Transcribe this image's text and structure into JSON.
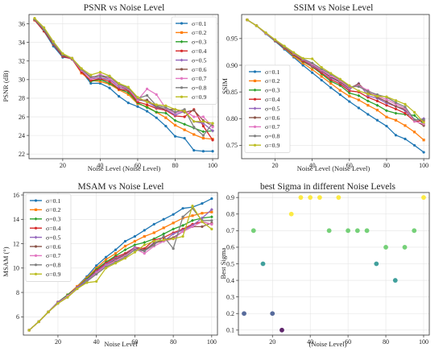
{
  "chart_data": [
    {
      "type": "line",
      "title": "PSNR vs Noise Level",
      "xlabel": "Noise Level (Noise Level)",
      "ylabel": "PSNR (dB)",
      "xlim": [
        2,
        103
      ],
      "ylim": [
        21.5,
        37
      ],
      "xticks": [
        20,
        40,
        60,
        80,
        100
      ],
      "yticks": [
        22,
        24,
        26,
        28,
        30,
        32,
        34,
        36
      ],
      "grid": true,
      "legend_position": "top-right",
      "x": [
        5,
        10,
        15,
        20,
        25,
        30,
        35,
        40,
        45,
        50,
        55,
        60,
        65,
        70,
        75,
        80,
        85,
        90,
        95,
        100
      ],
      "series": [
        {
          "name": "σ=0.1",
          "color": "#1f77b4",
          "values": [
            36.4,
            35.2,
            33.6,
            32.4,
            32.3,
            30.9,
            29.6,
            29.6,
            29.1,
            28.2,
            27.5,
            27.1,
            26.6,
            25.9,
            25.0,
            23.9,
            23.7,
            22.4,
            22.3,
            22.3
          ]
        },
        {
          "name": "σ=0.2",
          "color": "#ff7f0e",
          "values": [
            36.4,
            35.3,
            33.8,
            32.6,
            32.2,
            30.7,
            29.9,
            29.8,
            29.5,
            28.9,
            28.4,
            27.4,
            27.1,
            26.5,
            25.9,
            25.1,
            24.6,
            24.1,
            23.7,
            23.6
          ]
        },
        {
          "name": "σ=0.3",
          "color": "#2ca02c",
          "values": [
            36.4,
            35.3,
            33.8,
            32.6,
            32.2,
            30.9,
            29.8,
            30.0,
            29.6,
            29.0,
            28.6,
            27.5,
            27.0,
            26.5,
            26.4,
            25.6,
            25.2,
            24.8,
            24.4,
            24.5
          ]
        },
        {
          "name": "σ=0.4",
          "color": "#d62728",
          "values": [
            36.4,
            35.2,
            33.8,
            32.5,
            32.2,
            30.8,
            29.9,
            30.1,
            29.8,
            29.0,
            28.8,
            27.6,
            27.3,
            26.9,
            26.7,
            26.1,
            26.0,
            26.8,
            25.0,
            23.5
          ]
        },
        {
          "name": "σ=0.5",
          "color": "#9467bd",
          "values": [
            36.5,
            35.4,
            33.9,
            32.7,
            32.2,
            31.0,
            30.1,
            30.2,
            30.0,
            29.2,
            28.9,
            27.9,
            27.6,
            27.0,
            26.8,
            26.2,
            26.6,
            25.5,
            25.3,
            24.5
          ]
        },
        {
          "name": "σ=0.6",
          "color": "#8c564b",
          "values": [
            36.5,
            35.3,
            33.9,
            32.6,
            32.3,
            31.1,
            30.2,
            30.4,
            30.1,
            29.4,
            28.9,
            27.8,
            27.8,
            27.1,
            26.8,
            26.8,
            26.5,
            26.7,
            25.6,
            25.0
          ]
        },
        {
          "name": "σ=0.7",
          "color": "#e377c2",
          "values": [
            36.5,
            35.4,
            34.0,
            32.7,
            32.3,
            31.0,
            30.1,
            30.6,
            30.1,
            29.4,
            29.0,
            27.8,
            29.0,
            28.4,
            26.9,
            26.4,
            26.7,
            26.0,
            26.0,
            24.9
          ]
        },
        {
          "name": "σ=0.8",
          "color": "#7f7f7f",
          "values": [
            36.5,
            35.4,
            33.9,
            32.7,
            32.3,
            31.1,
            30.3,
            30.4,
            30.3,
            29.5,
            29.1,
            28.0,
            28.3,
            27.2,
            27.0,
            26.5,
            26.8,
            24.9,
            24.0,
            25.3
          ]
        },
        {
          "name": "σ=0.9",
          "color": "#bcbd22",
          "values": [
            36.6,
            35.6,
            34.1,
            32.8,
            32.3,
            31.2,
            30.5,
            30.8,
            30.4,
            29.6,
            29.2,
            28.1,
            27.6,
            27.3,
            27.2,
            26.8,
            26.6,
            25.5,
            25.5,
            25.3
          ]
        }
      ]
    },
    {
      "type": "line",
      "title": "SSIM vs Noise Level",
      "xlabel": "Noise Level (Noise Level)",
      "ylabel": "SSIM",
      "xlim": [
        2,
        103
      ],
      "ylim": [
        0.725,
        0.995
      ],
      "xticks": [
        20,
        40,
        60,
        80,
        100
      ],
      "yticks": [
        0.75,
        0.8,
        0.85,
        0.9,
        0.95
      ],
      "grid": true,
      "legend_position": "bottom-left",
      "x": [
        5,
        10,
        15,
        20,
        25,
        30,
        35,
        40,
        45,
        50,
        55,
        60,
        65,
        70,
        75,
        80,
        85,
        90,
        95,
        100
      ],
      "series": [
        {
          "name": "σ=0.1",
          "color": "#1f77b4",
          "values": [
            0.985,
            0.974,
            0.959,
            0.945,
            0.93,
            0.915,
            0.9,
            0.886,
            0.872,
            0.858,
            0.845,
            0.832,
            0.82,
            0.808,
            0.797,
            0.786,
            0.769,
            0.762,
            0.75,
            0.737
          ]
        },
        {
          "name": "σ=0.2",
          "color": "#ff7f0e",
          "values": [
            0.985,
            0.974,
            0.96,
            0.946,
            0.932,
            0.917,
            0.904,
            0.892,
            0.879,
            0.866,
            0.853,
            0.842,
            0.835,
            0.825,
            0.816,
            0.803,
            0.797,
            0.787,
            0.775,
            0.76
          ]
        },
        {
          "name": "σ=0.3",
          "color": "#2ca02c",
          "values": [
            0.985,
            0.974,
            0.96,
            0.946,
            0.933,
            0.919,
            0.907,
            0.897,
            0.884,
            0.87,
            0.862,
            0.848,
            0.843,
            0.833,
            0.825,
            0.815,
            0.81,
            0.808,
            0.806,
            0.79
          ]
        },
        {
          "name": "σ=0.4",
          "color": "#d62728",
          "values": [
            0.985,
            0.974,
            0.96,
            0.946,
            0.933,
            0.92,
            0.908,
            0.898,
            0.886,
            0.873,
            0.865,
            0.852,
            0.85,
            0.84,
            0.833,
            0.825,
            0.818,
            0.81,
            0.795,
            0.796
          ]
        },
        {
          "name": "σ=0.5",
          "color": "#9467bd",
          "values": [
            0.985,
            0.974,
            0.96,
            0.947,
            0.934,
            0.921,
            0.91,
            0.899,
            0.889,
            0.876,
            0.868,
            0.855,
            0.866,
            0.843,
            0.838,
            0.829,
            0.823,
            0.815,
            0.797,
            0.8
          ]
        },
        {
          "name": "σ=0.6",
          "color": "#8c564b",
          "values": [
            0.985,
            0.974,
            0.96,
            0.947,
            0.934,
            0.921,
            0.91,
            0.901,
            0.89,
            0.878,
            0.869,
            0.857,
            0.865,
            0.849,
            0.84,
            0.832,
            0.823,
            0.817,
            0.797,
            0.787
          ]
        },
        {
          "name": "σ=0.7",
          "color": "#e377c2",
          "values": [
            0.985,
            0.974,
            0.96,
            0.947,
            0.935,
            0.922,
            0.911,
            0.902,
            0.891,
            0.88,
            0.871,
            0.858,
            0.862,
            0.853,
            0.842,
            0.836,
            0.827,
            0.819,
            0.795,
            0.79
          ]
        },
        {
          "name": "σ=0.8",
          "color": "#7f7f7f",
          "values": [
            0.985,
            0.974,
            0.961,
            0.947,
            0.935,
            0.923,
            0.912,
            0.904,
            0.893,
            0.883,
            0.873,
            0.86,
            0.86,
            0.851,
            0.845,
            0.84,
            0.83,
            0.822,
            0.798,
            0.798
          ]
        },
        {
          "name": "σ=0.9",
          "color": "#bcbd22",
          "values": [
            0.985,
            0.974,
            0.961,
            0.948,
            0.936,
            0.924,
            0.913,
            0.912,
            0.896,
            0.885,
            0.874,
            0.862,
            0.852,
            0.846,
            0.842,
            0.841,
            0.834,
            0.827,
            0.812,
            0.793
          ]
        }
      ]
    },
    {
      "type": "line",
      "title": "MSAM vs Noise Level",
      "xlabel": "Noise Level",
      "ylabel": "MSAM (°)",
      "xlim": [
        2,
        103
      ],
      "ylim": [
        4.5,
        16.2
      ],
      "xticks": [
        20,
        40,
        60,
        80,
        100
      ],
      "yticks": [
        6,
        8,
        10,
        12,
        14,
        16
      ],
      "grid": true,
      "legend_position": "top-left",
      "x": [
        5,
        10,
        15,
        20,
        25,
        30,
        35,
        40,
        45,
        50,
        55,
        60,
        65,
        70,
        75,
        80,
        85,
        90,
        95,
        100
      ],
      "series": [
        {
          "name": "σ=0.1",
          "color": "#1f77b4",
          "values": [
            4.9,
            5.6,
            6.4,
            7.2,
            7.8,
            8.5,
            9.3,
            10.2,
            10.9,
            11.5,
            12.2,
            12.6,
            13.1,
            13.6,
            14.0,
            14.4,
            14.9,
            15.0,
            15.3,
            15.7
          ]
        },
        {
          "name": "σ=0.2",
          "color": "#ff7f0e",
          "values": [
            4.9,
            5.6,
            6.4,
            7.2,
            7.8,
            8.5,
            9.2,
            10.0,
            10.7,
            11.2,
            11.8,
            12.2,
            12.6,
            12.9,
            13.3,
            13.7,
            14.1,
            14.3,
            14.5,
            14.6
          ]
        },
        {
          "name": "σ=0.3",
          "color": "#2ca02c",
          "values": [
            4.9,
            5.6,
            6.4,
            7.2,
            7.8,
            8.4,
            9.1,
            9.9,
            10.5,
            11.0,
            11.5,
            11.9,
            12.1,
            12.4,
            12.8,
            13.2,
            13.5,
            13.9,
            14.1,
            14.2
          ]
        },
        {
          "name": "σ=0.4",
          "color": "#d62728",
          "values": [
            4.9,
            5.6,
            6.4,
            7.2,
            7.7,
            8.4,
            9.0,
            9.8,
            10.4,
            10.9,
            11.2,
            11.7,
            11.6,
            12.3,
            12.5,
            12.9,
            13.2,
            13.6,
            13.8,
            13.6
          ]
        },
        {
          "name": "σ=0.5",
          "color": "#9467bd",
          "values": [
            4.9,
            5.6,
            6.4,
            7.2,
            7.7,
            8.4,
            9.0,
            9.7,
            10.3,
            10.8,
            11.1,
            11.7,
            11.4,
            12.1,
            12.2,
            12.8,
            13.1,
            13.5,
            14.1,
            14.8
          ]
        },
        {
          "name": "σ=0.6",
          "color": "#8c564b",
          "values": [
            4.9,
            5.6,
            6.4,
            7.1,
            7.7,
            8.3,
            8.9,
            9.6,
            10.2,
            10.7,
            11.1,
            11.6,
            11.5,
            12.0,
            12.3,
            12.5,
            13.0,
            13.4,
            13.4,
            13.7
          ]
        },
        {
          "name": "σ=0.7",
          "color": "#e377c2",
          "values": [
            4.9,
            5.6,
            6.4,
            7.1,
            7.7,
            8.3,
            8.9,
            9.6,
            10.2,
            10.6,
            11.0,
            11.6,
            11.2,
            11.8,
            12.2,
            12.4,
            13.0,
            13.4,
            13.8,
            13.6
          ]
        },
        {
          "name": "σ=0.8",
          "color": "#7f7f7f",
          "values": [
            4.9,
            5.6,
            6.4,
            7.1,
            7.6,
            8.3,
            8.9,
            9.5,
            10.1,
            10.5,
            10.9,
            11.5,
            11.4,
            11.9,
            12.6,
            11.6,
            14.2,
            14.9,
            13.9,
            13.9
          ]
        },
        {
          "name": "σ=0.9",
          "color": "#bcbd22",
          "values": [
            4.9,
            5.6,
            6.4,
            7.1,
            7.6,
            8.3,
            8.8,
            8.9,
            10.0,
            10.4,
            10.8,
            11.3,
            11.9,
            12.2,
            12.3,
            12.4,
            12.6,
            15.1,
            13.8,
            13.2
          ]
        }
      ]
    },
    {
      "type": "scatter",
      "title": "best Sigma in different Noise Levels",
      "xlabel": "(Noise Level)",
      "ylabel": "Best Sigma",
      "xlim": [
        2,
        103
      ],
      "ylim": [
        0.07,
        0.93
      ],
      "xticks": [
        20,
        40,
        60,
        80,
        100
      ],
      "yticks": [
        0.1,
        0.2,
        0.3,
        0.4,
        0.5,
        0.6,
        0.7,
        0.8,
        0.9
      ],
      "grid": true,
      "color_scale": [
        "#440154",
        "#3b528b",
        "#21918c",
        "#5ec962",
        "#fde725"
      ],
      "points": [
        {
          "x": 5,
          "y": 0.2
        },
        {
          "x": 10,
          "y": 0.7
        },
        {
          "x": 15,
          "y": 0.5
        },
        {
          "x": 20,
          "y": 0.2
        },
        {
          "x": 25,
          "y": 0.1
        },
        {
          "x": 30,
          "y": 0.8
        },
        {
          "x": 35,
          "y": 0.9
        },
        {
          "x": 40,
          "y": 0.9
        },
        {
          "x": 45,
          "y": 0.9
        },
        {
          "x": 50,
          "y": 0.7
        },
        {
          "x": 55,
          "y": 0.9
        },
        {
          "x": 60,
          "y": 0.7
        },
        {
          "x": 65,
          "y": 0.7
        },
        {
          "x": 70,
          "y": 0.7
        },
        {
          "x": 75,
          "y": 0.5
        },
        {
          "x": 80,
          "y": 0.6
        },
        {
          "x": 85,
          "y": 0.4
        },
        {
          "x": 90,
          "y": 0.6
        },
        {
          "x": 95,
          "y": 0.7
        },
        {
          "x": 100,
          "y": 0.9
        }
      ]
    }
  ]
}
